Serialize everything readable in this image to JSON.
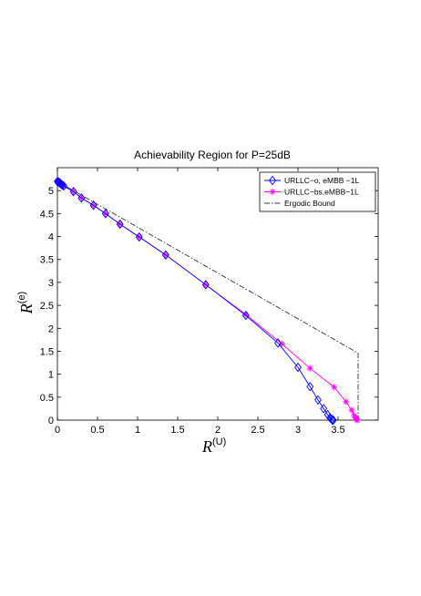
{
  "chart_data": {
    "type": "line",
    "title": "Achievability Region for P=25dB",
    "xlabel": {
      "main": "R",
      "sup": "(U)"
    },
    "ylabel": {
      "main": "R",
      "sup": "(e)"
    },
    "xlim": [
      0,
      4
    ],
    "ylim": [
      0,
      5.5
    ],
    "xticks": [
      "0",
      "0.5",
      "1",
      "1.5",
      "2",
      "2.5",
      "3",
      "3.5"
    ],
    "xtick_values": [
      0,
      0.5,
      1,
      1.5,
      2,
      2.5,
      3,
      3.5
    ],
    "yticks": [
      "0",
      "0.5",
      "1",
      "1.5",
      "2",
      "2.5",
      "3",
      "3.5",
      "4",
      "4.5",
      "5"
    ],
    "ytick_values": [
      0,
      0.5,
      1,
      1.5,
      2,
      2.5,
      3,
      3.5,
      4,
      4.5,
      5
    ],
    "grid": false,
    "legend_position": "top-right",
    "series": [
      {
        "name": "URLLC−o, eMBB −1L",
        "color": "#0000ff",
        "marker": "diamond",
        "x": [
          0.0,
          0.01,
          0.02,
          0.03,
          0.04,
          0.05,
          0.06,
          0.08,
          0.2,
          0.3,
          0.45,
          0.6,
          0.78,
          1.02,
          1.35,
          1.85,
          2.35,
          2.75,
          3.0,
          3.15,
          3.25,
          3.32,
          3.37,
          3.4,
          3.42,
          3.43,
          3.44
        ],
        "y": [
          5.2,
          5.19,
          5.18,
          5.17,
          5.15,
          5.14,
          5.12,
          5.1,
          4.98,
          4.84,
          4.68,
          4.5,
          4.27,
          3.99,
          3.6,
          2.95,
          2.28,
          1.68,
          1.15,
          0.73,
          0.44,
          0.25,
          0.12,
          0.05,
          0.02,
          0.0,
          0.0
        ]
      },
      {
        "name": "URLLC−bs,eMBB−1L",
        "color": "#ff00ff",
        "marker": "asterisk",
        "x": [
          0.0,
          0.01,
          0.02,
          0.03,
          0.04,
          0.05,
          0.06,
          0.08,
          0.2,
          0.3,
          0.45,
          0.6,
          0.78,
          1.02,
          1.35,
          1.85,
          2.35,
          2.8,
          3.15,
          3.45,
          3.6,
          3.67,
          3.7,
          3.72,
          3.73,
          3.74
        ],
        "y": [
          5.2,
          5.19,
          5.18,
          5.17,
          5.15,
          5.14,
          5.12,
          5.1,
          4.98,
          4.84,
          4.68,
          4.5,
          4.27,
          3.99,
          3.6,
          2.95,
          2.3,
          1.66,
          1.13,
          0.72,
          0.4,
          0.22,
          0.1,
          0.05,
          0.02,
          0.0
        ]
      },
      {
        "name": "Ergodic Bound",
        "color": "#333333",
        "marker": "none",
        "dash": "dashdot",
        "x": [
          0.0,
          3.75,
          3.75
        ],
        "y": [
          5.2,
          1.46,
          0.0
        ]
      }
    ]
  }
}
